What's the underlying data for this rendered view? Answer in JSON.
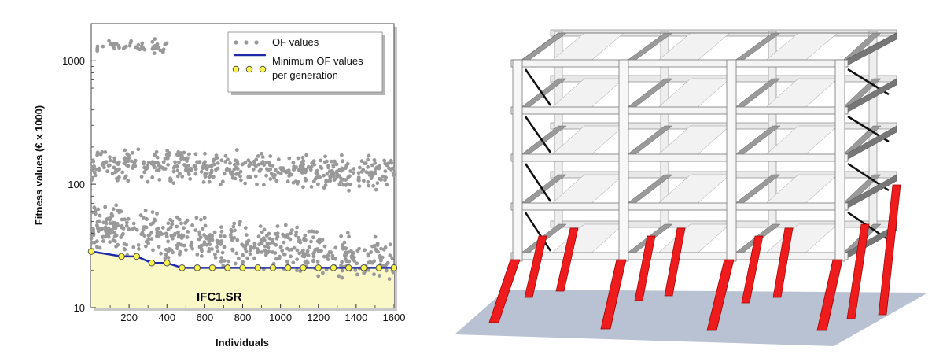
{
  "chart_data": {
    "type": "scatter",
    "title": "",
    "xlabel": "Individuals",
    "ylabel": "Fitness values (€ x 1000)",
    "xlim": [
      0,
      1600
    ],
    "ylim": [
      10,
      2000
    ],
    "yscale": "log",
    "x_ticks": [
      200,
      400,
      600,
      800,
      1000,
      1200,
      1400,
      1600
    ],
    "y_ticks": [
      10,
      100,
      1000
    ],
    "legend_position": "top-right",
    "legend": [
      {
        "label": "OF values",
        "marker": "gray-dots"
      },
      {
        "label": "Minimum OF values",
        "marker": "blue-line"
      },
      {
        "label": "per generation",
        "marker": "yellow-circles"
      }
    ],
    "annotation": "IFC1.SR",
    "colors": {
      "of_values": "#999999",
      "minimum_line": "#1f2aa8",
      "minimum_markers": "#f7f34a",
      "feasible_fill": "#fbf8c8"
    },
    "series": [
      {
        "name": "OF values",
        "bands": [
          {
            "x_range": [
              30,
              400
            ],
            "y_center": 1300,
            "y_spread": 1.12
          },
          {
            "x_range": [
              0,
              1600
            ],
            "y_center_start": 150,
            "y_center_end": 120,
            "y_spread": 1.25
          },
          {
            "x_range": [
              0,
              1600
            ],
            "y_center_start": 45,
            "y_center_end": 24,
            "y_spread": 1.35
          }
        ]
      },
      {
        "name": "Minimum OF values per generation",
        "x": [
          0,
          160,
          240,
          320,
          400,
          480,
          560,
          640,
          720,
          800,
          880,
          960,
          1040,
          1120,
          1200,
          1280,
          1360,
          1440,
          1520,
          1600
        ],
        "values": [
          28.5,
          26.0,
          26.0,
          23.0,
          23.0,
          21.0,
          21.0,
          21.0,
          21.0,
          21.0,
          21.0,
          21.0,
          21.0,
          21.0,
          21.0,
          21.0,
          21.0,
          21.0,
          21.0,
          21.0
        ]
      }
    ]
  }
}
